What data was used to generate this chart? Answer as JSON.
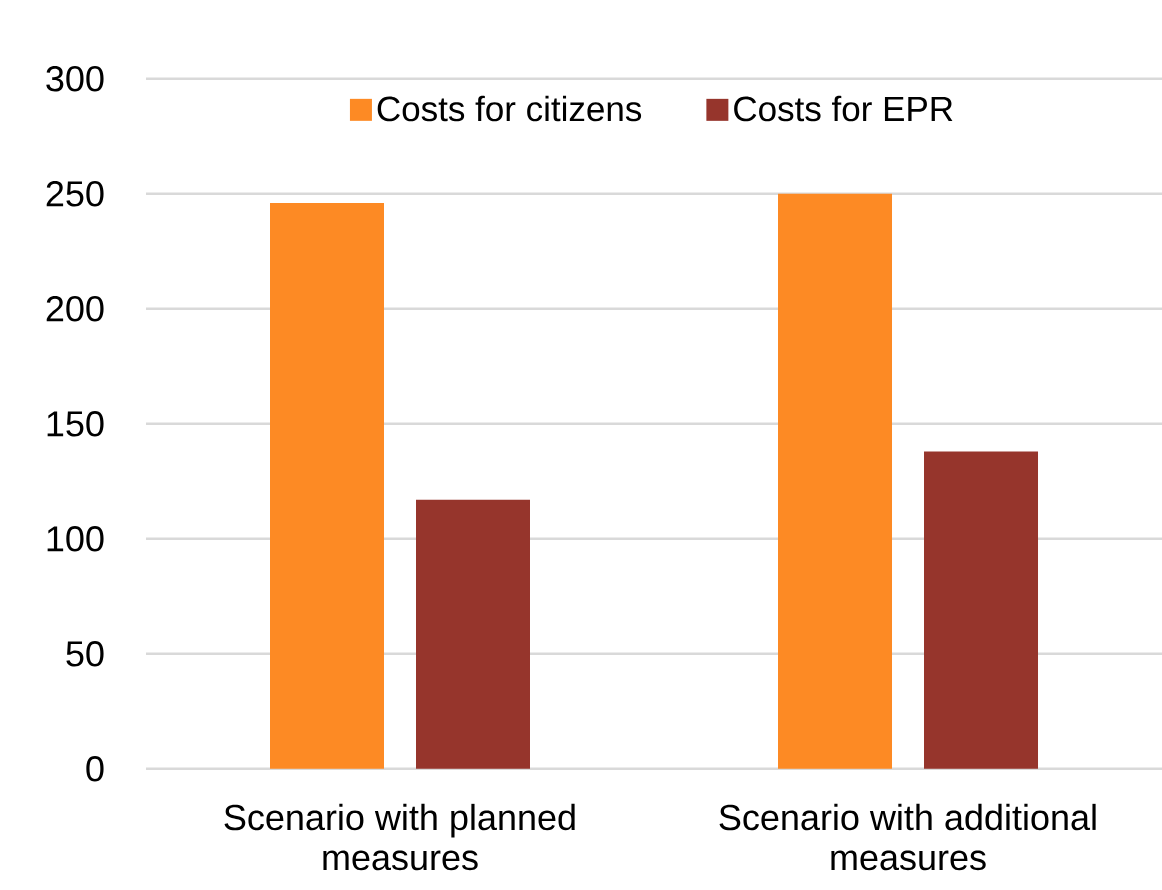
{
  "chart_data": {
    "type": "bar",
    "categories": [
      "Scenario with planned measures",
      "Scenario with additional measures"
    ],
    "series": [
      {
        "name": "Costs for citizens",
        "color": "#fd8a24",
        "values": [
          246,
          250
        ]
      },
      {
        "name": "Costs for EPR",
        "color": "#96352c",
        "values": [
          117,
          138
        ]
      }
    ],
    "ylim": [
      0,
      300
    ],
    "yticks": [
      0,
      50,
      100,
      150,
      200,
      250,
      300
    ],
    "grid": "y",
    "legend": "top"
  }
}
